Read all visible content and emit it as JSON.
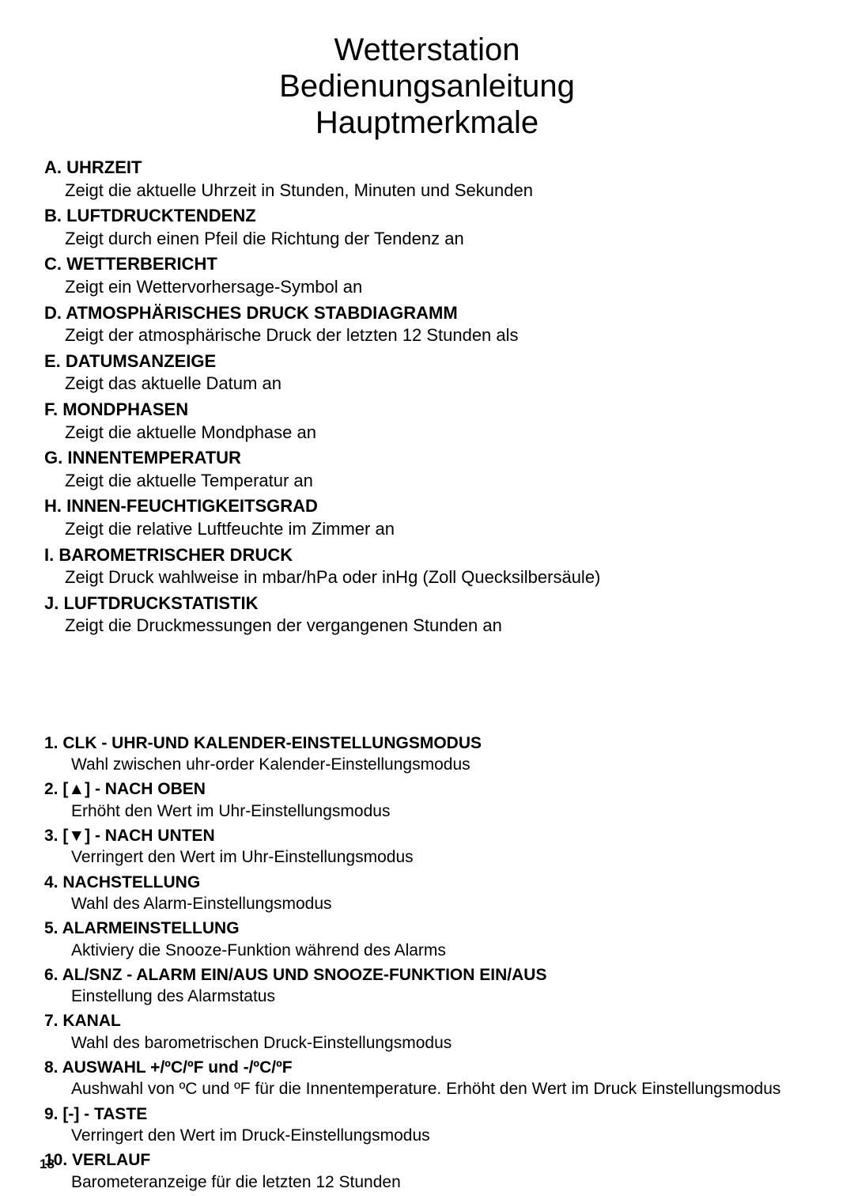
{
  "title": {
    "line1": "Wetterstation",
    "line2": "Bedienungsanleitung",
    "line3": "Hauptmerkmale"
  },
  "features": [
    {
      "label": "A. UHRZEIT",
      "desc": "Zeigt die aktuelle Uhrzeit in Stunden, Minuten und Sekunden"
    },
    {
      "label": "B. LUFTDRUCKTENDENZ",
      "desc": "Zeigt durch einen Pfeil die Richtung der Tendenz an"
    },
    {
      "label": "C. WETTERBERICHT",
      "desc": "Zeigt ein Wettervorhersage-Symbol an"
    },
    {
      "label": "D. ATMOSPHÄRISCHES DRUCK STABDIAGRAMM",
      "desc": "Zeigt der atmosphärische Druck der letzten 12 Stunden als"
    },
    {
      "label": "E. DATUMSANZEIGE",
      "desc": "Zeigt das aktuelle Datum an"
    },
    {
      "label": "F. MONDPHASEN",
      "desc": "Zeigt die aktuelle Mondphase an"
    },
    {
      "label": "G. INNENTEMPERATUR",
      "desc": "Zeigt die aktuelle Temperatur an"
    },
    {
      "label": "H.  INNEN-FEUCHTIGKEITSGRAD",
      "desc": "Zeigt die relative Luftfeuchte im Zimmer an"
    },
    {
      "label": "I. BAROMETRISCHER DRUCK",
      "desc": "Zeigt Druck wahlweise in mbar/hPa oder inHg (Zoll Quecksilbersäule)"
    },
    {
      "label": "J. LUFTDRUCKSTATISTIK",
      "desc": "Zeigt die Druckmessungen der vergangenen Stunden an"
    }
  ],
  "controls": [
    {
      "label": "1.  CLK - UHR-UND KALENDER-EINSTELLUNGSMODUS",
      "desc": "Wahl zwischen uhr-order Kalender-Einstellungsmodus"
    },
    {
      "label": "2.  [▲] - NACH OBEN",
      "desc": "Erhöht den Wert im Uhr-Einstellungsmodus"
    },
    {
      "label": "3.  [▼] - NACH UNTEN",
      "desc": "Verringert den Wert im Uhr-Einstellungsmodus"
    },
    {
      "label": "4.  NACHSTELLUNG",
      "desc": "Wahl des Alarm-Einstellungsmodus"
    },
    {
      "label": "5.  ALARMEINSTELLUNG",
      "desc": "Aktiviery die Snooze-Funktion während des Alarms"
    },
    {
      "label": "6.  AL/SNZ - ALARM EIN/AUS UND SNOOZE-FUNKTION EIN/AUS",
      "desc": "Einstellung des Alarmstatus"
    },
    {
      "label": "7.  KANAL",
      "desc": "Wahl des barometrischen Druck-Einstellungsmodus"
    },
    {
      "label": "8.  AUSWAHL +/ºC/ºF und -/ºC/ºF",
      "desc": "Aushwahl von ºC und ºF für die Innentemperature. Erhöht den Wert im Druck Einstellungsmodus"
    },
    {
      "label": "9.  [-] - TASTE",
      "desc": "Verringert den Wert im Druck-Einstellungsmodus"
    },
    {
      "label": " 10. VERLAUF",
      "desc": "Barometeranzeige für die letzten 12 Stunden"
    }
  ],
  "page_number": "18",
  "colors": {
    "text": "#000000",
    "background": "#ffffff"
  },
  "typography": {
    "title_size_pt": 40,
    "body_size_pt": 22,
    "controls_size_pt": 21,
    "pagenum_size_pt": 17
  }
}
